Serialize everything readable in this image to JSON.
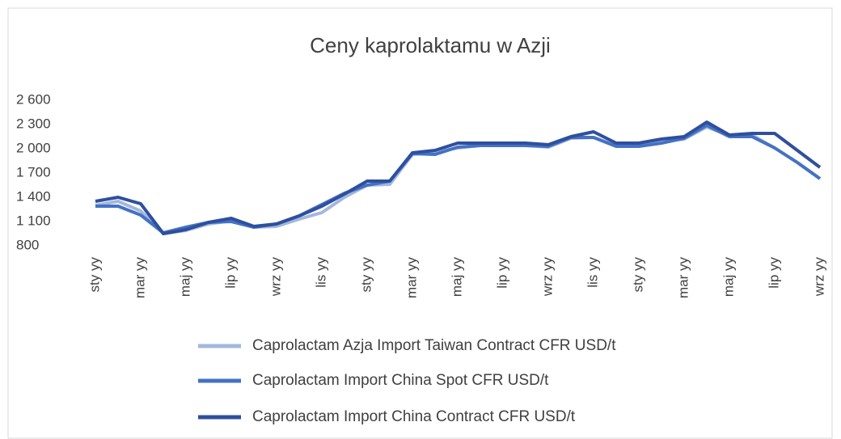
{
  "chart_data": {
    "type": "line",
    "title": "Ceny kaprolaktamu w Azji",
    "categories": [
      "sty yy",
      null,
      "mar yy",
      null,
      "maj yy",
      null,
      "lip yy",
      null,
      "wrz yy",
      null,
      "lis yy",
      null,
      "sty yy",
      null,
      "mar yy",
      null,
      "maj yy",
      null,
      "lip yy",
      null,
      "wrz yy",
      null,
      "lis yy",
      null,
      "sty yy",
      null,
      "mar yy",
      null,
      "maj yy",
      null,
      "lip yy",
      null,
      "wrz yy"
    ],
    "series": [
      {
        "name": "Caprolactam Azja Import Taiwan Contract CFR USD/t",
        "color": "#a3b7de",
        "values": [
          1300,
          1350,
          1230,
          950,
          990,
          1070,
          1110,
          1030,
          1040,
          1130,
          1210,
          1400,
          1550,
          1560,
          1930,
          1960,
          2010,
          2040,
          2040,
          2040,
          2020,
          2130,
          2140,
          2040,
          2040,
          2090,
          2120,
          2270,
          2160,
          2170,
          2010,
          1830,
          1630
        ]
      },
      {
        "name": "Caprolactam Import China Spot CFR USD/t",
        "color": "#4472c4",
        "values": [
          1290,
          1290,
          1180,
          960,
          1030,
          1090,
          1100,
          1030,
          1070,
          1170,
          1310,
          1450,
          1550,
          1600,
          1940,
          1930,
          2020,
          2040,
          2040,
          2040,
          2030,
          2140,
          2140,
          2030,
          2030,
          2070,
          2130,
          2290,
          2150,
          2150,
          2010,
          1830,
          1630
        ]
      },
      {
        "name": "Caprolactam Import China Contract CFR USD/t",
        "color": "#2f4f9e",
        "values": [
          1350,
          1400,
          1320,
          950,
          1000,
          1090,
          1140,
          1040,
          1070,
          1170,
          1290,
          1440,
          1600,
          1600,
          1950,
          1980,
          2070,
          2070,
          2070,
          2070,
          2050,
          2150,
          2210,
          2070,
          2070,
          2120,
          2150,
          2330,
          2170,
          2190,
          2190,
          1980,
          1770
        ]
      }
    ],
    "ylim": [
      800,
      2600
    ],
    "yticks": [
      {
        "value": 800,
        "label": "800"
      },
      {
        "value": 1100,
        "label": "1 100"
      },
      {
        "value": 1400,
        "label": "1 400"
      },
      {
        "value": 1700,
        "label": "1 700"
      },
      {
        "value": 2000,
        "label": "2 000"
      },
      {
        "value": 2300,
        "label": "2 300"
      },
      {
        "value": 2600,
        "label": "2 600"
      }
    ],
    "grid": false
  }
}
